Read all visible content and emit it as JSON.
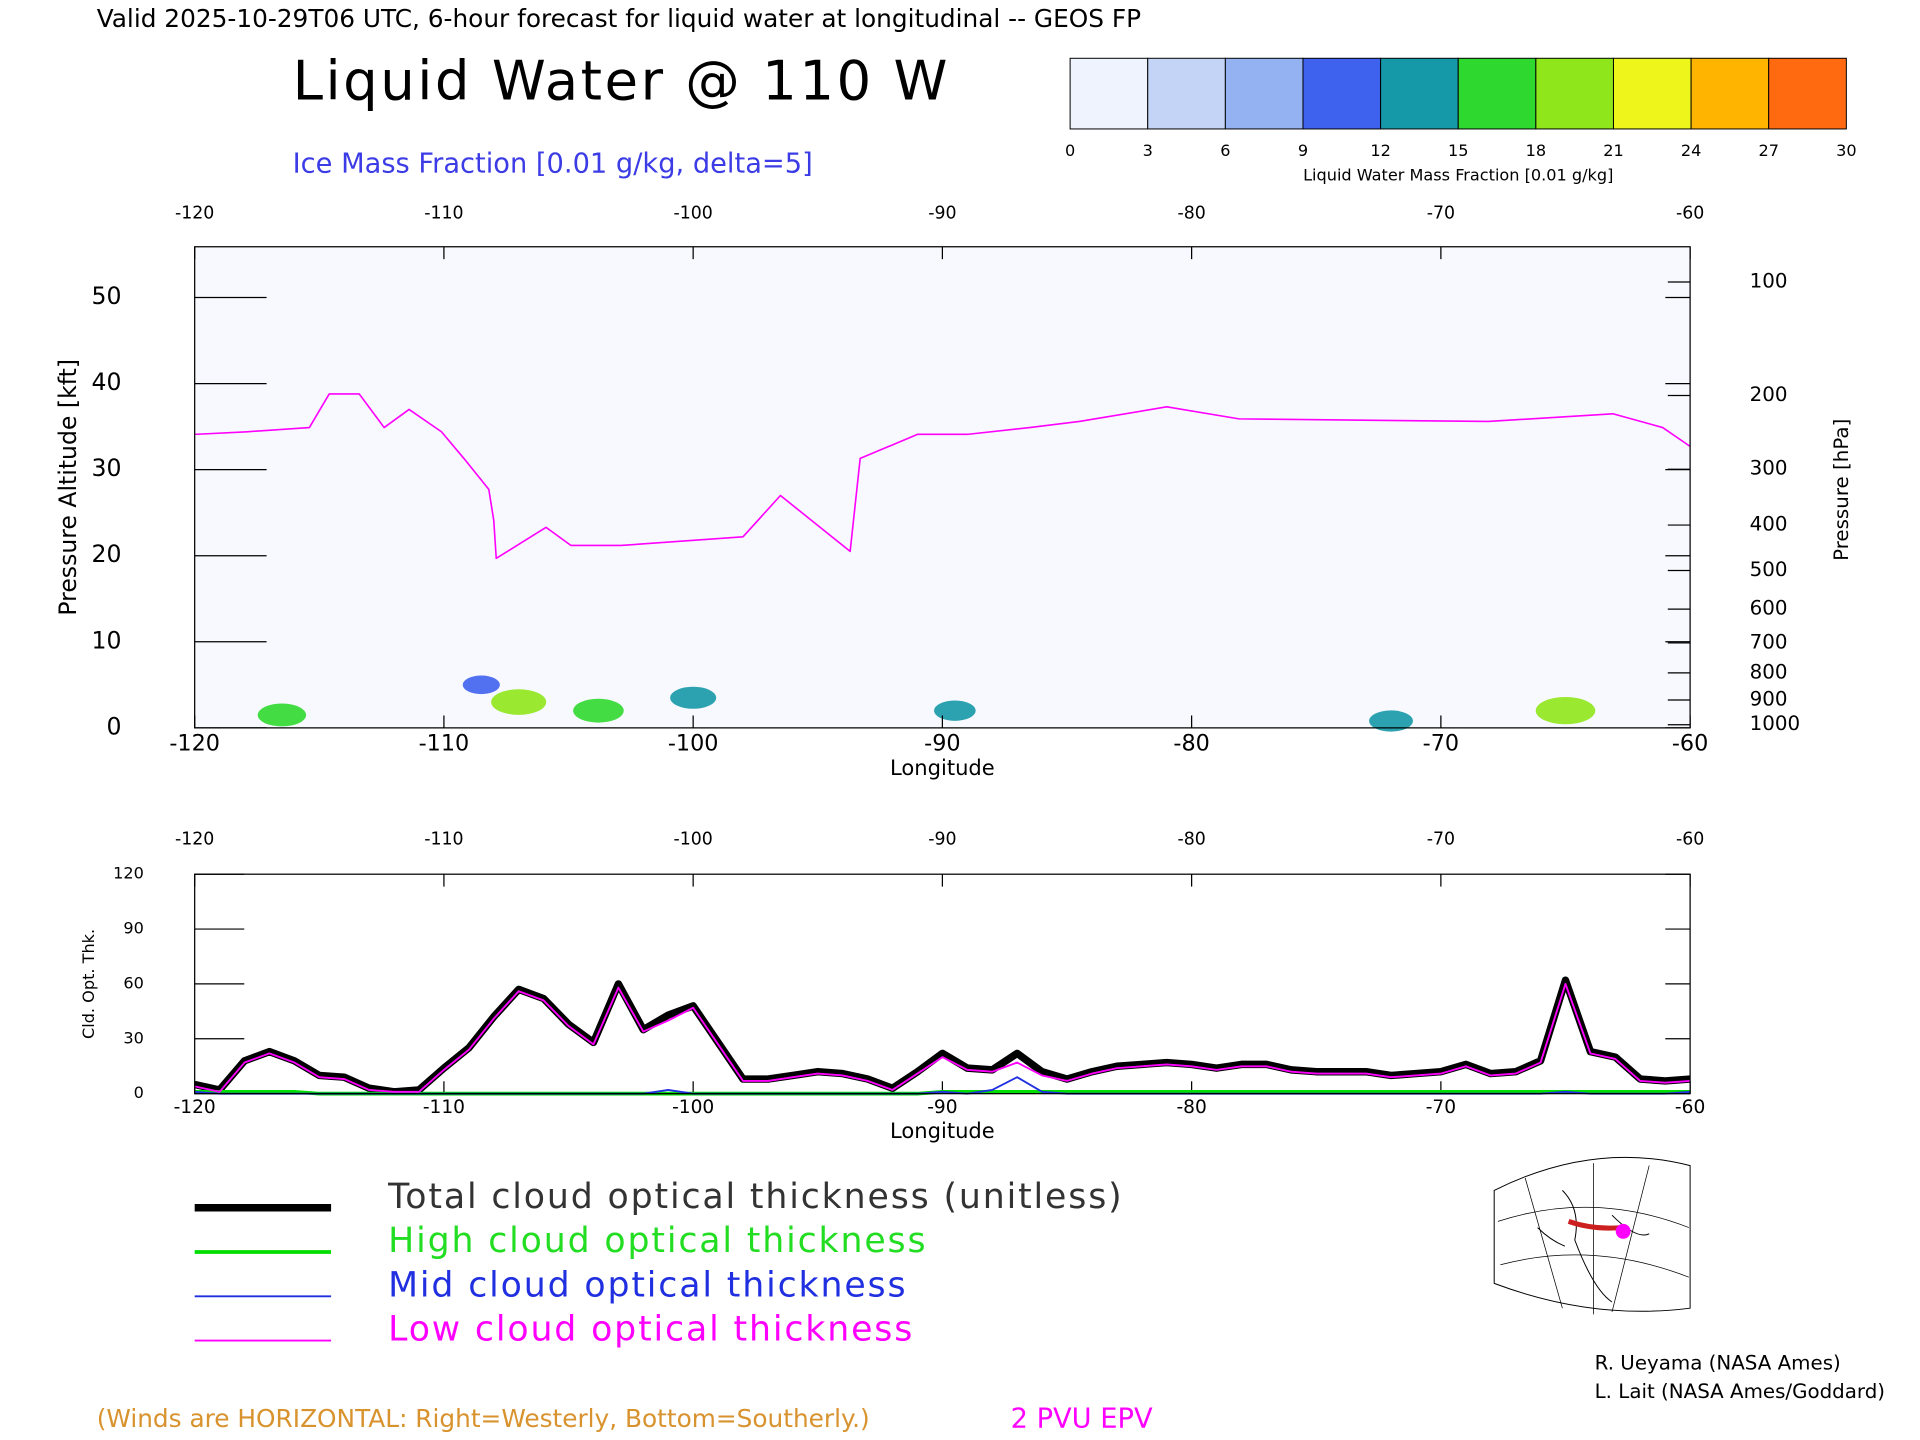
{
  "header": {
    "title": "Valid 2025-10-29T06 UTC, 6-hour forecast for liquid water at longitudinal -- GEOS FP",
    "main_title": "Liquid Water @ 110 W",
    "subtitle": "Ice Mass Fraction [0.01 g/kg, delta=5]"
  },
  "colorbar": {
    "label": "Liquid Water Mass Fraction [0.01 g/kg]",
    "ticks": [
      0,
      3,
      6,
      9,
      12,
      15,
      18,
      21,
      24,
      27,
      30
    ],
    "colors": [
      "#eef3fd",
      "#c3d4f7",
      "#94b1f2",
      "#3f62ee",
      "#1598a8",
      "#2fd82f",
      "#8fe61a",
      "#eef51a",
      "#ffb400",
      "#ff6a10"
    ]
  },
  "chart_data": [
    {
      "type": "line",
      "xlabel": "Longitude",
      "ylabel": "Pressure Altitude [kft]",
      "y2label": "Pressure [hPa]",
      "xlim": [
        -120,
        -60
      ],
      "xticks": [
        -120,
        -110,
        -100,
        -90,
        -80,
        -70,
        -60
      ],
      "ylim": [
        0,
        55.9
      ],
      "yticks": [
        0,
        10,
        20,
        30,
        40,
        50
      ],
      "y2scale": "pressure-altitude",
      "y2ticks": [
        100,
        200,
        300,
        400,
        500,
        600,
        700,
        800,
        900,
        1000
      ],
      "x": [
        -120,
        -117.9,
        -115.4,
        -114.6,
        -113.4,
        -112.4,
        -111.4,
        -110.1,
        -109.2,
        -108.2,
        -108.0,
        -107.9,
        -105.9,
        -104.9,
        -102.9,
        -98.0,
        -96.5,
        -93.7,
        -93.3,
        -91.0,
        -89.0,
        -86.5,
        -84.5,
        -81.0,
        -78.1,
        -68.1,
        -63.1,
        -61.1,
        -60
      ],
      "series": [
        {
          "name": "2 PVU EPV",
          "color": "#ff00ff",
          "values": [
            34.1,
            34.4,
            34.9,
            38.8,
            38.8,
            34.9,
            37.0,
            34.4,
            31.3,
            27.7,
            24.1,
            19.7,
            23.3,
            21.2,
            21.2,
            22.2,
            27.0,
            20.5,
            31.3,
            34.1,
            34.1,
            34.9,
            35.6,
            37.3,
            35.9,
            35.6,
            36.5,
            34.9,
            32.7
          ]
        }
      ],
      "cells": {
        "x": [
          -116.5,
          -107,
          -103.8,
          -100,
          -108.5,
          -89.5,
          -65,
          -72
        ],
        "y": [
          1.5,
          3,
          2,
          3.5,
          5,
          2,
          2,
          0.8
        ],
        "values": [
          15,
          18,
          16,
          14,
          10,
          12,
          20,
          13
        ]
      }
    },
    {
      "type": "line",
      "xlabel": "Longitude",
      "ylabel": "Cld. Opt. Thk.",
      "xlim": [
        -120,
        -60
      ],
      "xticks": [
        -120,
        -110,
        -100,
        -90,
        -80,
        -70,
        -60
      ],
      "ylim": [
        0,
        120
      ],
      "yticks": [
        0,
        30,
        60,
        90,
        120
      ],
      "x": [
        -120,
        -119,
        -118,
        -117,
        -116,
        -115,
        -114,
        -113,
        -112,
        -111,
        -110,
        -109,
        -108,
        -107,
        -106,
        -105,
        -104,
        -103,
        -102,
        -101,
        -100,
        -99,
        -98,
        -97,
        -96,
        -95,
        -94,
        -93,
        -92,
        -91,
        -90,
        -89,
        -88,
        -87,
        -86,
        -85,
        -84,
        -83,
        -82,
        -81,
        -80,
        -79,
        -78,
        -77,
        -76,
        -75,
        -74,
        -73,
        -72,
        -71,
        -70,
        -69,
        -68,
        -67,
        -66,
        -65,
        -64,
        -63,
        -62,
        -61,
        -60
      ],
      "series": [
        {
          "name": "Total cloud optical thickness (unitless)",
          "color": "#000000",
          "width": 6,
          "values": [
            5,
            2,
            18,
            23,
            18,
            10,
            9,
            3,
            1,
            2,
            14,
            25,
            42,
            57,
            52,
            38,
            28,
            60,
            35,
            43,
            48,
            28,
            8,
            8,
            10,
            12,
            11,
            8,
            3,
            12,
            22,
            14,
            13,
            22,
            12,
            8,
            12,
            15,
            16,
            17,
            16,
            14,
            16,
            16,
            13,
            12,
            12,
            12,
            10,
            11,
            12,
            16,
            11,
            12,
            18,
            62,
            23,
            20,
            8,
            7,
            8
          ]
        },
        {
          "name": "High cloud optical thickness",
          "color": "#00dd00",
          "width": 3,
          "values": [
            1,
            1,
            1,
            1,
            1,
            0,
            0,
            0,
            0,
            0,
            0,
            0,
            0,
            0,
            0,
            0,
            0,
            0,
            0,
            0,
            0,
            0,
            0,
            0,
            0,
            0,
            0,
            0,
            0,
            0,
            1,
            1,
            1,
            1,
            1,
            1,
            1,
            1,
            1,
            1,
            1,
            1,
            1,
            1,
            1,
            1,
            1,
            1,
            1,
            1,
            1,
            1,
            1,
            1,
            1,
            1,
            1,
            1,
            1,
            1,
            1
          ]
        },
        {
          "name": "Mid cloud optical thickness",
          "color": "#2030e0",
          "width": 1.5,
          "values": [
            1,
            0,
            0,
            0,
            0,
            0,
            0,
            0,
            0,
            0,
            0,
            0,
            0,
            0,
            0,
            0,
            0,
            0,
            0,
            2,
            0,
            0,
            0,
            0,
            0,
            0,
            0,
            0,
            0,
            0,
            1,
            0,
            2,
            9,
            1,
            0,
            0,
            0,
            0,
            0,
            0,
            0,
            0,
            0,
            0,
            0,
            0,
            0,
            0,
            0,
            0,
            0,
            0,
            0,
            0,
            1,
            0,
            0,
            0,
            0,
            1
          ]
        },
        {
          "name": "Low cloud optical thickness",
          "color": "#ff00ff",
          "width": 1.5,
          "values": [
            4,
            1,
            17,
            22,
            17,
            9,
            8,
            2,
            1,
            1,
            13,
            24,
            41,
            56,
            51,
            37,
            27,
            58,
            34,
            40,
            47,
            27,
            7,
            7,
            9,
            11,
            10,
            7,
            2,
            11,
            20,
            13,
            12,
            17,
            10,
            7,
            11,
            14,
            15,
            16,
            15,
            13,
            15,
            15,
            12,
            11,
            11,
            11,
            9,
            10,
            11,
            15,
            10,
            11,
            17,
            60,
            22,
            19,
            7,
            6,
            7
          ]
        }
      ]
    }
  ],
  "notes": {
    "winds": "(Winds are HORIZONTAL: Right=Westerly, Bottom=Southerly.)",
    "credit1": "R. Ueyama (NASA Ames)",
    "credit2": "L. Lait (NASA Ames/Goddard)"
  }
}
